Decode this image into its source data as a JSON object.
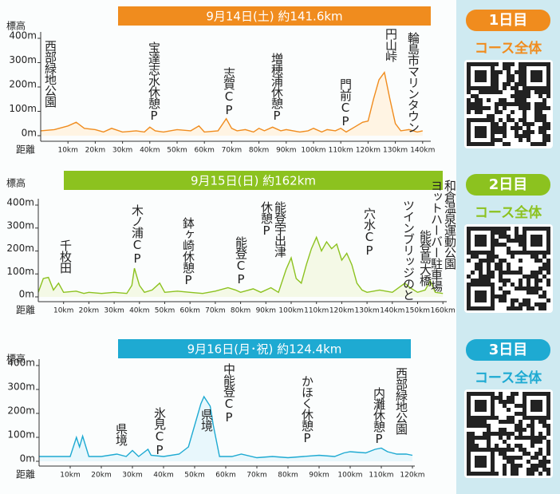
{
  "chart_data": [
    {
      "type": "area",
      "title": "9月14日(土) 約141.6km",
      "y_label": "標高",
      "x_label": "距離",
      "color": "#f08c1e",
      "fill_color": "#fff4e3",
      "grid": false,
      "xlim": [
        0,
        140
      ],
      "xticks": [
        {
          "value": 10,
          "label": "10km"
        },
        {
          "value": 20,
          "label": "20km"
        },
        {
          "value": 30,
          "label": "30km"
        },
        {
          "value": 40,
          "label": "40km"
        },
        {
          "value": 50,
          "label": "50km"
        },
        {
          "value": 60,
          "label": "60km"
        },
        {
          "value": 70,
          "label": "70km"
        },
        {
          "value": 80,
          "label": "80km"
        },
        {
          "value": 90,
          "label": "90km"
        },
        {
          "value": 100,
          "label": "100km"
        },
        {
          "value": 110,
          "label": "110km"
        },
        {
          "value": 120,
          "label": "120km"
        },
        {
          "value": 130,
          "label": "130km"
        },
        {
          "value": 140,
          "label": "140km"
        }
      ],
      "ylim": [
        0,
        400
      ],
      "yticks": [
        {
          "value": 0,
          "label": "0m"
        },
        {
          "value": 100,
          "label": "100m"
        },
        {
          "value": 200,
          "label": "200m"
        },
        {
          "value": 300,
          "label": "300m"
        },
        {
          "value": 400,
          "label": "400m"
        }
      ],
      "x": [
        0,
        5,
        10,
        13,
        16,
        20,
        23,
        26,
        30,
        35,
        38,
        40,
        42,
        45,
        50,
        55,
        58,
        60,
        65,
        68,
        70,
        72,
        75,
        78,
        80,
        82,
        85,
        88,
        90,
        95,
        98,
        100,
        103,
        105,
        108,
        110,
        112,
        115,
        118,
        120,
        122,
        124,
        126,
        128,
        130,
        132,
        135,
        138,
        140
      ],
      "values": [
        20,
        25,
        40,
        55,
        30,
        25,
        15,
        30,
        15,
        20,
        15,
        35,
        20,
        15,
        25,
        20,
        40,
        15,
        20,
        70,
        30,
        20,
        25,
        15,
        30,
        20,
        35,
        20,
        25,
        15,
        20,
        30,
        15,
        25,
        20,
        30,
        15,
        35,
        55,
        60,
        150,
        230,
        260,
        150,
        50,
        20,
        25,
        15,
        20
      ],
      "annotations": [
        "西部緑地公園",
        "宝達志水休憩P",
        "志賀CP",
        "増穂浦休憩P",
        "門前CP",
        "円山峠",
        "輪島市マリンタウン"
      ]
    },
    {
      "type": "area",
      "title": "9月15日(日) 約162km",
      "y_label": "標高",
      "x_label": "距離",
      "color": "#8cc21f",
      "fill_color": "#f4f9e6",
      "grid": false,
      "xlim": [
        0,
        160
      ],
      "xticks": [
        {
          "value": 10,
          "label": "10km"
        },
        {
          "value": 20,
          "label": "20km"
        },
        {
          "value": 30,
          "label": "30km"
        },
        {
          "value": 40,
          "label": "40km"
        },
        {
          "value": 50,
          "label": "50km"
        },
        {
          "value": 60,
          "label": "60km"
        },
        {
          "value": 70,
          "label": "70km"
        },
        {
          "value": 80,
          "label": "80km"
        },
        {
          "value": 90,
          "label": "90km"
        },
        {
          "value": 100,
          "label": "100km"
        },
        {
          "value": 110,
          "label": "110km"
        },
        {
          "value": 120,
          "label": "120km"
        },
        {
          "value": 130,
          "label": "130km"
        },
        {
          "value": 140,
          "label": "140km"
        },
        {
          "value": 150,
          "label": "150km"
        },
        {
          "value": 160,
          "label": "160km"
        }
      ],
      "ylim": [
        0,
        400
      ],
      "yticks": [
        {
          "value": 0,
          "label": "0m"
        },
        {
          "value": 100,
          "label": "100m"
        },
        {
          "value": 200,
          "label": "200m"
        },
        {
          "value": 300,
          "label": "300m"
        },
        {
          "value": 400,
          "label": "400m"
        }
      ],
      "x": [
        0,
        2,
        4,
        6,
        8,
        10,
        15,
        18,
        20,
        25,
        30,
        35,
        37,
        38,
        40,
        42,
        45,
        48,
        50,
        55,
        60,
        65,
        70,
        75,
        78,
        80,
        85,
        88,
        92,
        95,
        98,
        100,
        102,
        104,
        106,
        108,
        110,
        112,
        114,
        116,
        118,
        120,
        122,
        124,
        126,
        128,
        130,
        135,
        140,
        145,
        147,
        150,
        153,
        155,
        157,
        160
      ],
      "values": [
        20,
        80,
        85,
        30,
        60,
        20,
        25,
        15,
        20,
        15,
        20,
        15,
        50,
        125,
        50,
        20,
        30,
        60,
        20,
        25,
        20,
        15,
        25,
        40,
        30,
        20,
        35,
        20,
        40,
        20,
        120,
        170,
        80,
        60,
        140,
        210,
        260,
        200,
        240,
        210,
        230,
        160,
        190,
        140,
        60,
        30,
        20,
        30,
        20,
        60,
        40,
        20,
        30,
        70,
        20,
        15
      ],
      "annotations": [
        "千枚田",
        "木ノ浦CP",
        "鉢ヶ崎休憩P",
        "能登CP",
        "能登宇出津\n休憩P",
        "穴水CP",
        "ツインブリッジのと",
        "能登島大橋",
        "和倉温泉運動公園\nヨットハーバー駐車場"
      ]
    },
    {
      "type": "area",
      "title": "9月16日(月･祝) 約124.4km",
      "y_label": "標高",
      "x_label": "距離",
      "color": "#1eaad2",
      "fill_color": "#e8f7fc",
      "grid": false,
      "xlim": [
        0,
        120
      ],
      "xticks": [
        {
          "value": 10,
          "label": "10km"
        },
        {
          "value": 20,
          "label": "20km"
        },
        {
          "value": 30,
          "label": "30km"
        },
        {
          "value": 40,
          "label": "40km"
        },
        {
          "value": 50,
          "label": "50km"
        },
        {
          "value": 60,
          "label": "60km"
        },
        {
          "value": 70,
          "label": "70km"
        },
        {
          "value": 80,
          "label": "80km"
        },
        {
          "value": 90,
          "label": "90km"
        },
        {
          "value": 100,
          "label": "100km"
        },
        {
          "value": 110,
          "label": "110km"
        },
        {
          "value": 120,
          "label": "120km"
        }
      ],
      "ylim": [
        0,
        400
      ],
      "yticks": [
        {
          "value": 0,
          "label": "0m"
        },
        {
          "value": 100,
          "label": "100m"
        },
        {
          "value": 200,
          "label": "200m"
        },
        {
          "value": 300,
          "label": "300m"
        },
        {
          "value": 400,
          "label": "400m"
        }
      ],
      "x": [
        0,
        5,
        10,
        12,
        13,
        14,
        16,
        20,
        25,
        28,
        30,
        32,
        35,
        36,
        40,
        45,
        48,
        50,
        52,
        53,
        55,
        56,
        58,
        62,
        65,
        70,
        75,
        80,
        85,
        90,
        95,
        98,
        100,
        105,
        108,
        110,
        112,
        115,
        118,
        120
      ],
      "values": [
        20,
        20,
        20,
        100,
        60,
        105,
        20,
        20,
        30,
        20,
        45,
        20,
        50,
        25,
        20,
        30,
        60,
        150,
        240,
        270,
        230,
        150,
        20,
        20,
        30,
        15,
        20,
        15,
        20,
        25,
        20,
        35,
        40,
        35,
        50,
        55,
        40,
        30,
        30,
        25
      ],
      "annotations": [
        "県境",
        "氷見CP",
        "県境",
        "中能登CP",
        "かほく休憩P",
        "内灘休憩P",
        "西部緑地公園"
      ]
    }
  ],
  "side_panels": [
    {
      "day": "1日目",
      "course": "コース全体"
    },
    {
      "day": "2日目",
      "course": "コース全体"
    },
    {
      "day": "3日目",
      "course": "コース全体"
    }
  ]
}
